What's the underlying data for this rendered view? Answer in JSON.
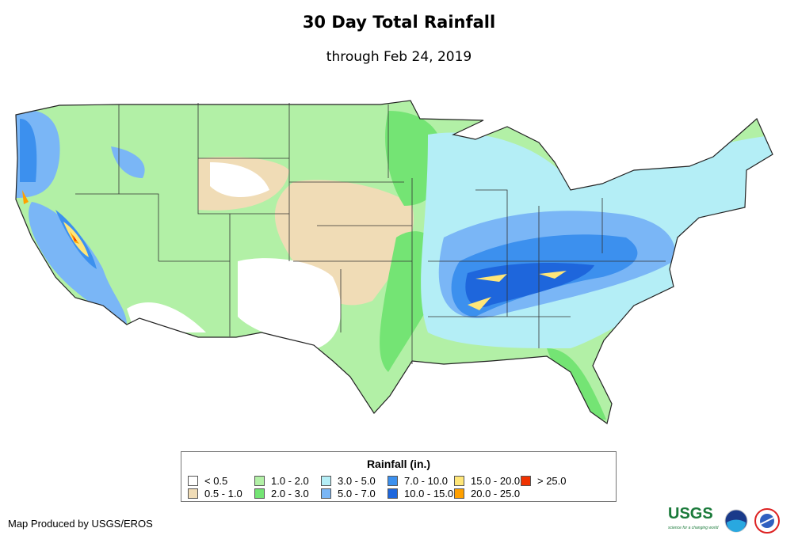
{
  "title": "30 Day Total Rainfall",
  "subtitle": "through Feb 24, 2019",
  "legend": {
    "title": "Rainfall (in.)",
    "items": [
      {
        "label": "< 0.5",
        "color": "#ffffff"
      },
      {
        "label": "0.5 - 1.0",
        "color": "#f0dcb6"
      },
      {
        "label": "1.0 - 2.0",
        "color": "#b2f0a6"
      },
      {
        "label": "2.0 - 3.0",
        "color": "#74e474"
      },
      {
        "label": "3.0 - 5.0",
        "color": "#b4eef6"
      },
      {
        "label": "5.0 - 7.0",
        "color": "#7ab6f6"
      },
      {
        "label": "7.0 - 10.0",
        "color": "#3c90ee"
      },
      {
        "label": "10.0 - 15.0",
        "color": "#1e66dc"
      },
      {
        "label": "15.0 - 20.0",
        "color": "#ffe678"
      },
      {
        "label": "20.0 - 25.0",
        "color": "#ffa000"
      },
      {
        "label": "> 25.0",
        "color": "#f03200"
      }
    ]
  },
  "credit": "Map Produced by USGS/EROS",
  "logos": {
    "usgs": "USGS",
    "usgs_tagline": "science for a changing world",
    "noaa": "noaa",
    "nws": "NATIONAL WEATHER SERVICE"
  }
}
